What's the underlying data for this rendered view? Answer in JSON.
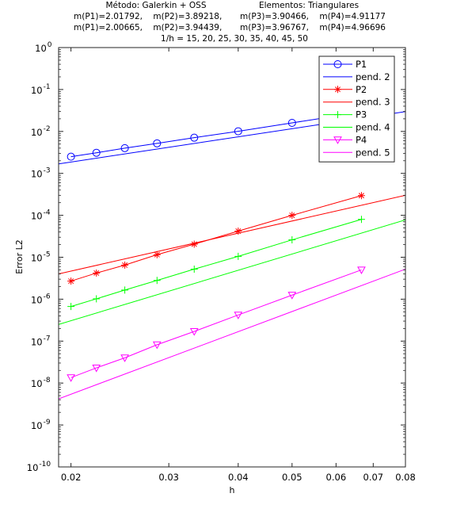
{
  "chart_data": {
    "type": "line",
    "title": {
      "left_line1": "Método: Galerkin + OSS",
      "right_line1": "Elementos: Triangulares",
      "left_line2": "m(P1)=2.01792,    m(P2)=3.89218,",
      "right_line2": "m(P3)=3.90466,    m(P4)=4.91177",
      "left_line3": "m(P1)=2.00665,    m(P2)=3.94439,",
      "right_line3": "m(P3)=3.96767,    m(P4)=4.96696",
      "line4": "1/h = 15, 20, 25, 30, 35, 40, 45, 50"
    },
    "xlabel": "h",
    "ylabel": "Error L2",
    "xscale": "log",
    "yscale": "log",
    "xlim": [
      0.019,
      0.08
    ],
    "ylim": [
      1e-10,
      1
    ],
    "xticks": [
      {
        "v": 0.02,
        "label": "0.02"
      },
      {
        "v": 0.03,
        "label": "0.03"
      },
      {
        "v": 0.04,
        "label": "0.04"
      },
      {
        "v": 0.05,
        "label": "0.05"
      },
      {
        "v": 0.06,
        "label": "0.06"
      },
      {
        "v": 0.07,
        "label": "0.07"
      },
      {
        "v": 0.08,
        "label": "0.08"
      }
    ],
    "yticks": [
      {
        "exp": -10,
        "label": "10"
      },
      {
        "exp": -9,
        "label": "10"
      },
      {
        "exp": -8,
        "label": "10"
      },
      {
        "exp": -7,
        "label": "10"
      },
      {
        "exp": -6,
        "label": "10"
      },
      {
        "exp": -5,
        "label": "10"
      },
      {
        "exp": -4,
        "label": "10"
      },
      {
        "exp": -3,
        "label": "10"
      },
      {
        "exp": -2,
        "label": "10"
      },
      {
        "exp": -1,
        "label": "10"
      },
      {
        "exp": 0,
        "label": "10"
      }
    ],
    "grid": false,
    "legend_position": "top-right",
    "series": [
      {
        "name": "P1",
        "color": "#0000ff",
        "marker": "circle",
        "x": [
          0.02,
          0.022222,
          0.025,
          0.028571,
          0.033333,
          0.04,
          0.05,
          0.066667
        ],
        "y": [
          0.0025,
          0.0031,
          0.004,
          0.0052,
          0.0071,
          0.0101,
          0.016,
          0.029
        ]
      },
      {
        "name": "pend. 2",
        "color": "#0000ff",
        "marker": "none",
        "x": [
          0.019,
          0.08
        ],
        "y": [
          0.00168,
          0.0297
        ]
      },
      {
        "name": "P2",
        "color": "#ff0000",
        "marker": "star",
        "x": [
          0.02,
          0.022222,
          0.025,
          0.028571,
          0.033333,
          0.04,
          0.05,
          0.066667
        ],
        "y": [
          2.7e-06,
          4.2e-06,
          6.5e-06,
          1.15e-05,
          2.05e-05,
          4.2e-05,
          0.0001,
          0.000295
        ]
      },
      {
        "name": "pend. 3",
        "color": "#ff0000",
        "marker": "none",
        "x": [
          0.019,
          0.08
        ],
        "y": [
          4e-06,
          0.0003
        ]
      },
      {
        "name": "P3",
        "color": "#00ff00",
        "marker": "plus",
        "x": [
          0.02,
          0.022222,
          0.025,
          0.028571,
          0.033333,
          0.04,
          0.05,
          0.066667
        ],
        "y": [
          6.7e-07,
          1.02e-06,
          1.65e-06,
          2.8e-06,
          5.2e-06,
          1.05e-05,
          2.6e-05,
          8e-05
        ]
      },
      {
        "name": "pend. 4",
        "color": "#00ff00",
        "marker": "none",
        "x": [
          0.019,
          0.08
        ],
        "y": [
          2.5e-07,
          7.8e-05
        ]
      },
      {
        "name": "P4",
        "color": "#ff00ff",
        "marker": "triangle-down",
        "x": [
          0.02,
          0.022222,
          0.025,
          0.028571,
          0.033333,
          0.04,
          0.05,
          0.066667
        ],
        "y": [
          1.35e-08,
          2.3e-08,
          4e-08,
          8.2e-08,
          1.7e-07,
          4.2e-07,
          1.25e-06,
          5e-06
        ]
      },
      {
        "name": "pend. 5",
        "color": "#ff00ff",
        "marker": "none",
        "x": [
          0.019,
          0.08
        ],
        "y": [
          4.2e-09,
          5.2e-06
        ]
      }
    ]
  }
}
